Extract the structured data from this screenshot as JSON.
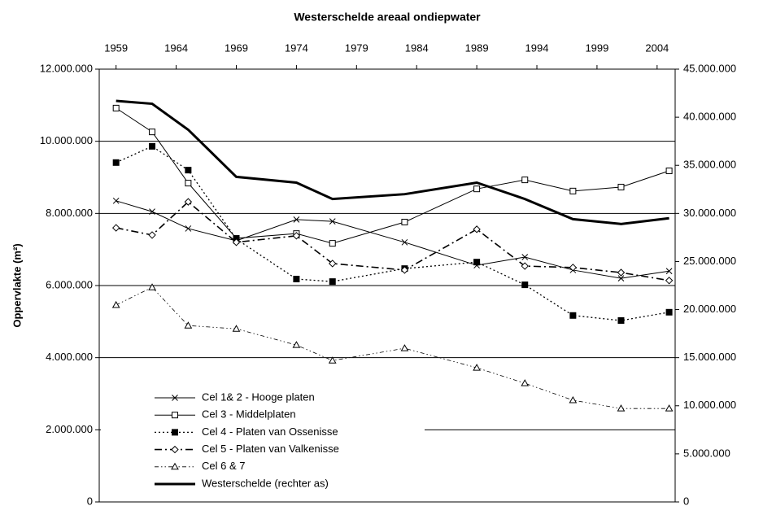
{
  "chart_data": {
    "type": "line",
    "title": "Westerschelde areaal ondiepwater",
    "y_label": "Oppervlakte (m²)",
    "x": [
      1959,
      1962,
      1965,
      1969,
      1974,
      1977,
      1983,
      1989,
      1993,
      1997,
      2001,
      2005
    ],
    "xlim": [
      1957.6,
      2005.5
    ],
    "xticks": [
      1959,
      1964,
      1969,
      1974,
      1979,
      1984,
      1989,
      1994,
      1999,
      2004
    ],
    "ylim": [
      0,
      12000000
    ],
    "yticks": [
      0,
      {
        "value": 2000000,
        "label": "2.000.000"
      },
      {
        "value": 4000000,
        "label": "4.000.000"
      },
      {
        "value": 6000000,
        "label": "6.000.000"
      },
      {
        "value": 8000000,
        "label": "8.000.000"
      },
      {
        "value": 10000000,
        "label": "10.000.000"
      },
      {
        "value": 12000000,
        "label": "12.000.000"
      }
    ],
    "y2lim": [
      0,
      45000000
    ],
    "y2ticks": [
      0,
      {
        "value": 5000000,
        "label": "5.000.000"
      },
      {
        "value": 10000000,
        "label": "10.000.000"
      },
      {
        "value": 15000000,
        "label": "15.000.000"
      },
      {
        "value": 20000000,
        "label": "20.000.000"
      },
      {
        "value": 25000000,
        "label": "25.000.000"
      },
      {
        "value": 30000000,
        "label": "30.000.000"
      },
      {
        "value": 35000000,
        "label": "35.000.000"
      },
      {
        "value": 40000000,
        "label": "40.000.000"
      },
      {
        "value": 45000000,
        "label": "45.000.000"
      }
    ],
    "grid": true,
    "legend": "lower left",
    "series": [
      {
        "name": "Cel 1& 2 - Hooge platen",
        "color": "#000000",
        "marker": "x",
        "dash": "solid",
        "width": 1,
        "values": [
          8350000,
          8050000,
          7580000,
          7240000,
          7830000,
          7780000,
          7200000,
          6560000,
          6790000,
          6430000,
          6200000,
          6400000
        ]
      },
      {
        "name": "Cel 3 - Middelplaten",
        "color": "#000000",
        "marker": "square-open",
        "dash": "solid",
        "width": 1,
        "values": [
          10920000,
          10260000,
          8840000,
          7310000,
          7440000,
          7170000,
          7760000,
          8680000,
          8930000,
          8620000,
          8730000,
          9180000
        ]
      },
      {
        "name": "Cel 4 - Platen van Ossenisse",
        "color": "#000000",
        "marker": "square",
        "dash": "dotted",
        "width": 1.3,
        "values": [
          9410000,
          9860000,
          9200000,
          7290000,
          6180000,
          6110000,
          6470000,
          6650000,
          6020000,
          5170000,
          5030000,
          5260000
        ]
      },
      {
        "name": "Cel 5 - Platen van Valkenisse",
        "color": "#000000",
        "marker": "diamond-open",
        "dash": "dashdot",
        "width": 1.6,
        "values": [
          7600000,
          7400000,
          8320000,
          7200000,
          7380000,
          6610000,
          6430000,
          7560000,
          6540000,
          6500000,
          6360000,
          6140000
        ]
      },
      {
        "name": "Cel 6 & 7",
        "color": "#000000",
        "marker": "triangle-open",
        "dash": "dashdotdot",
        "width": 0.8,
        "values": [
          5460000,
          5950000,
          4890000,
          4800000,
          4350000,
          3920000,
          4260000,
          3720000,
          3290000,
          2820000,
          2590000,
          2590000
        ]
      },
      {
        "name": "Westerschelde (rechter as)",
        "color": "#000000",
        "marker": "none",
        "dash": "solid",
        "width": 3,
        "axis": "y2",
        "values": [
          41700000,
          41400000,
          38700000,
          33800000,
          33200000,
          31500000,
          32000000,
          33200000,
          31500000,
          29400000,
          28900000,
          29500000
        ]
      }
    ]
  }
}
